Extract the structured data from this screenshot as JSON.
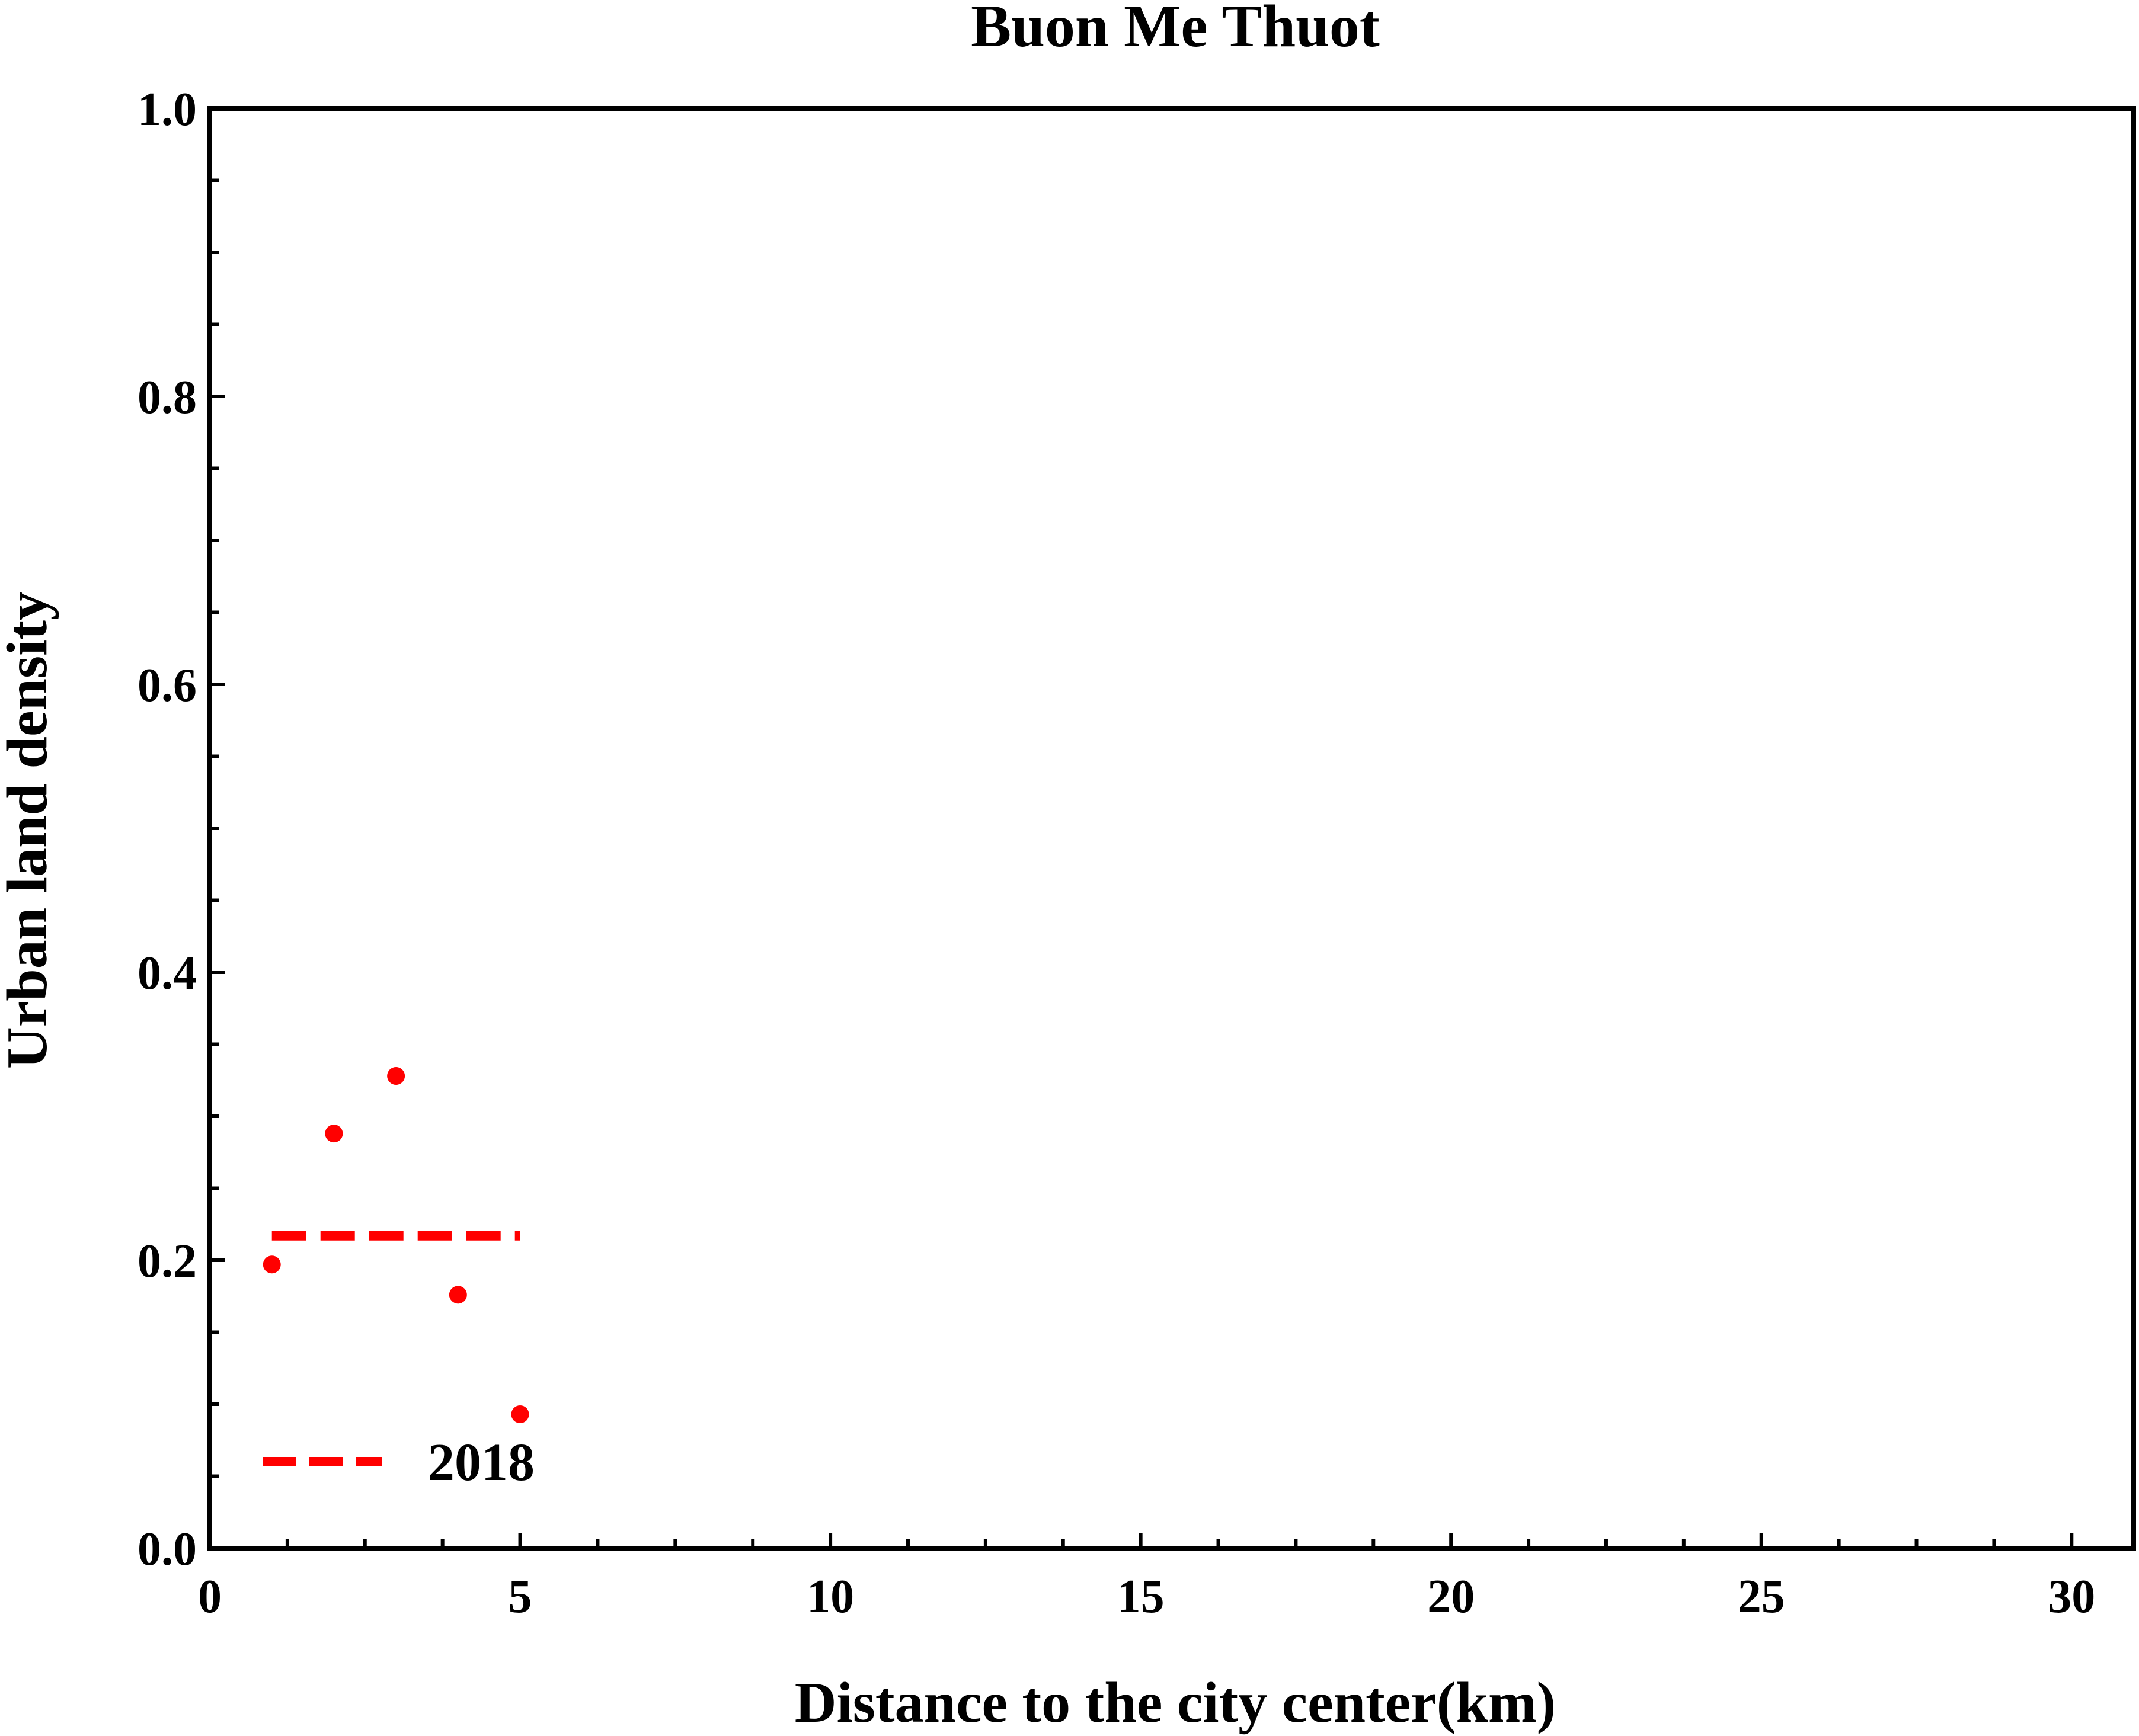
{
  "chart_data": {
    "type": "scatter",
    "title": "Buon Me Thuot",
    "xlabel": "Distance to the city center(km)",
    "ylabel": "Urban land density",
    "xlim": [
      0,
      31
    ],
    "ylim": [
      0,
      1.0
    ],
    "x_ticks": [
      0,
      5,
      10,
      15,
      20,
      25,
      30
    ],
    "x_tick_labels": [
      "0",
      "5",
      "10",
      "15",
      "20",
      "25",
      "30"
    ],
    "x_minor_step": 1.25,
    "y_ticks": [
      0.0,
      0.2,
      0.4,
      0.6,
      0.8,
      1.0
    ],
    "y_tick_labels": [
      "0.0",
      "0.2",
      "0.4",
      "0.6",
      "0.8",
      "1.0"
    ],
    "y_minor_step": 0.05,
    "grid": false,
    "legend_position": "bottom-left",
    "series": [
      {
        "name": "2018",
        "color": "#ff0000",
        "points": [
          {
            "x": 1,
            "y": 0.197
          },
          {
            "x": 2,
            "y": 0.288
          },
          {
            "x": 3,
            "y": 0.328
          },
          {
            "x": 4,
            "y": 0.176
          },
          {
            "x": 5,
            "y": 0.093
          }
        ],
        "mean_line": {
          "x": [
            1,
            5
          ],
          "y": 0.217,
          "style": "dashed"
        }
      }
    ]
  }
}
